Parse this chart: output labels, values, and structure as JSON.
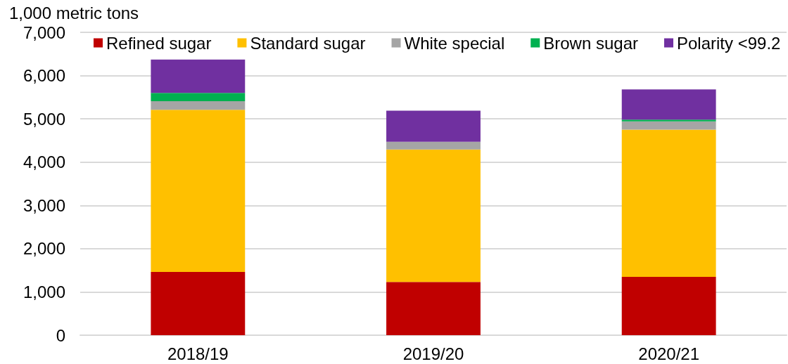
{
  "chart_data": {
    "type": "bar",
    "stacked": true,
    "ylabel": "1,000 metric tons",
    "categories": [
      "2018/19",
      "2019/20",
      "2020/21"
    ],
    "series": [
      {
        "name": "Refined sugar",
        "color": "#c00000",
        "values": [
          1460,
          1230,
          1350
        ]
      },
      {
        "name": "Standard sugar",
        "color": "#ffc000",
        "values": [
          3750,
          3060,
          3400
        ]
      },
      {
        "name": "White special",
        "color": "#a5a5a5",
        "values": [
          200,
          180,
          190
        ]
      },
      {
        "name": "Brown sugar",
        "color": "#00b050",
        "values": [
          190,
          0,
          40
        ]
      },
      {
        "name": "Polarity <99.2",
        "color": "#7030a0",
        "values": [
          770,
          720,
          700
        ]
      }
    ],
    "ylim": [
      0,
      7000
    ],
    "yticks": [
      0,
      {
        "value": 1000,
        "label": "1,000"
      },
      {
        "value": 2000,
        "label": "2,000"
      },
      {
        "value": 3000,
        "label": "3,000"
      },
      {
        "value": 4000,
        "label": "4,000"
      },
      {
        "value": 5000,
        "label": "5,000"
      },
      {
        "value": 6000,
        "label": "6,000"
      },
      {
        "value": 7000,
        "label": "7,000"
      }
    ],
    "grid": "y",
    "legend": "top"
  }
}
